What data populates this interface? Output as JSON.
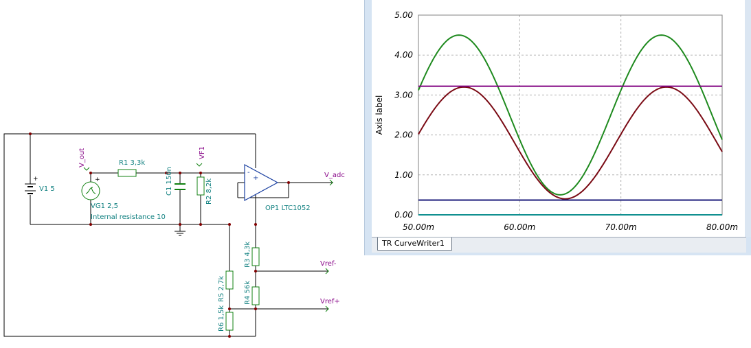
{
  "schematic": {
    "components": {
      "v1": "V1 5",
      "vg1": "VG1 2,5",
      "vg1_internal": "Internal resistance 10",
      "r1": "R1 3,3k",
      "c1": "C1 150n",
      "r2": "R2 8,2k",
      "op1": "OP1 LTC1052",
      "r3": "R3 4,3k",
      "r4": "R4 56k",
      "r5": "R5 2,7k",
      "r6": "R6 1,5k"
    },
    "nets": {
      "v_out": "V_out",
      "vf1": "VF1",
      "v_adc": "V_adc",
      "vref_minus": "Vref-",
      "vref_plus": "Vref+"
    },
    "opamp_pins": {
      "plus": "+",
      "minus": "-"
    }
  },
  "simulator": {
    "tab_label": "TR CurveWriter1",
    "colors": {
      "green": "#1e8a1e",
      "maroon": "#7a0a14",
      "purple": "#800080",
      "navy": "#1a1a7a",
      "teal": "#109090"
    }
  },
  "chart_data": {
    "type": "line",
    "title": "",
    "xlabel": "",
    "ylabel": "Axis label",
    "xlim": [
      0.05,
      0.08
    ],
    "ylim": [
      0,
      5
    ],
    "grid": true,
    "x_ticks": [
      "50.00m",
      "60.00m",
      "70.00m",
      "80.00m"
    ],
    "y_ticks": [
      "0.00",
      "1.00",
      "2.00",
      "3.00",
      "4.00",
      "5.00"
    ],
    "series": [
      {
        "color": "#1e8a1e",
        "kind": "sine",
        "offset": 2.5,
        "amplitude": 2.0,
        "period": 0.02,
        "peak_at": 0.054,
        "x": [
          0.05,
          0.054,
          0.064,
          0.074,
          0.08
        ],
        "y": [
          3.0,
          4.5,
          0.5,
          4.5,
          1.95
        ]
      },
      {
        "color": "#7a0a14",
        "kind": "sine",
        "offset": 1.8,
        "amplitude": 1.4,
        "period": 0.02,
        "peak_at": 0.0545,
        "x": [
          0.05,
          0.0545,
          0.0645,
          0.0745,
          0.08
        ],
        "y": [
          2.0,
          3.2,
          0.4,
          3.2,
          1.55
        ]
      },
      {
        "color": "#800080",
        "kind": "const",
        "x": [
          0.05,
          0.08
        ],
        "y": [
          3.22,
          3.22
        ]
      },
      {
        "color": "#1a1a7a",
        "kind": "const",
        "x": [
          0.05,
          0.08
        ],
        "y": [
          0.37,
          0.37
        ]
      },
      {
        "color": "#109090",
        "kind": "const",
        "x": [
          0.05,
          0.08
        ],
        "y": [
          0.0,
          0.0
        ]
      }
    ]
  }
}
